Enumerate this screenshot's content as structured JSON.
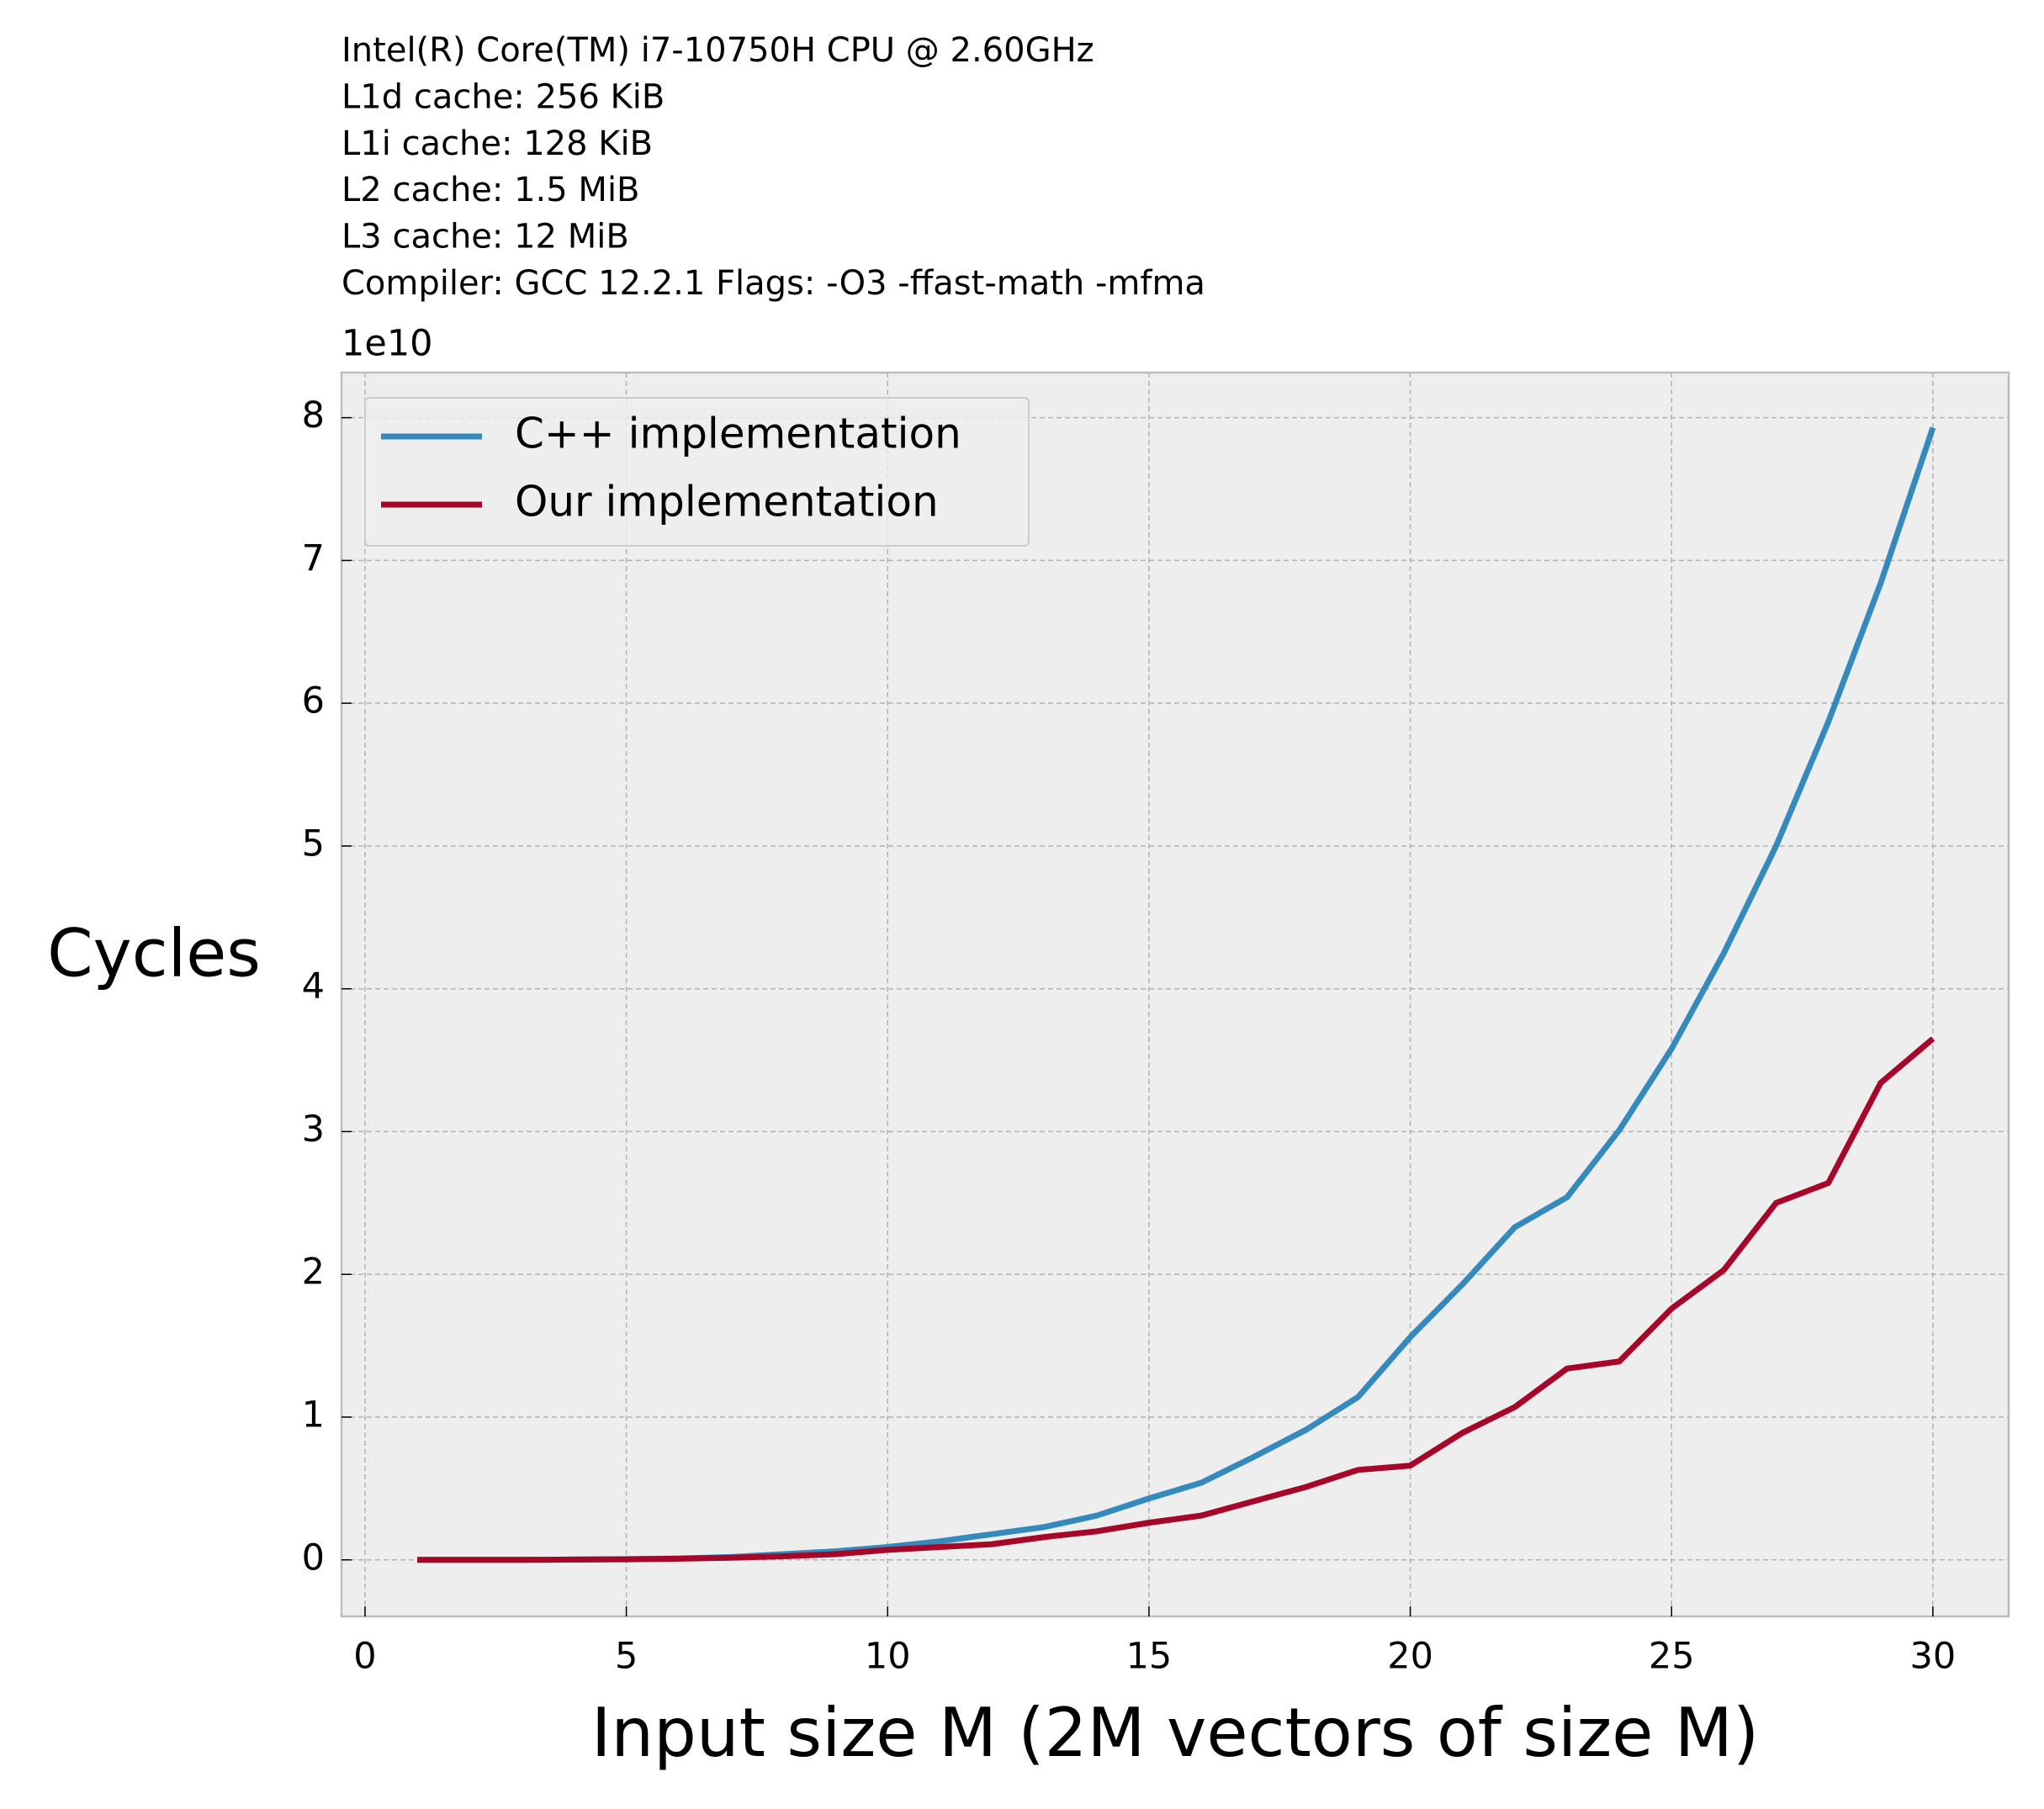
{
  "chart_data": {
    "type": "line",
    "annotations": [
      "Intel(R) Core(TM) i7-10750H CPU @ 2.60GHz",
      "L1d cache: 256 KiB",
      "L1i cache: 128 KiB",
      "L2 cache: 1.5 MiB",
      "L3 cache: 12 MiB",
      "Compiler:  GCC 12.2.1 Flags: -O3 -ffast-math -mfma"
    ],
    "y_offset_label": "1e10",
    "x_label": "Input size M (2M vectors of size M)",
    "y_label": "Cycles",
    "x": [
      1,
      2,
      3,
      4,
      5,
      6,
      7,
      8,
      9,
      10,
      11,
      12,
      13,
      14,
      15,
      16,
      17,
      18,
      19,
      20,
      21,
      22,
      23,
      24,
      25,
      26,
      27,
      28,
      29,
      30
    ],
    "series": [
      {
        "name": "C++ implementation",
        "color": "#348abd",
        "values": [
          0,
          0,
          0,
          0.002,
          0.005,
          0.01,
          0.02,
          0.04,
          0.06,
          0.09,
          0.13,
          0.18,
          0.23,
          0.31,
          0.43,
          0.54,
          0.72,
          0.91,
          1.14,
          1.56,
          1.93,
          2.33,
          2.54,
          3.01,
          3.58,
          4.25,
          5.0,
          5.87,
          6.84,
          7.93
        ]
      },
      {
        "name": "Our implementation",
        "color": "#a60628",
        "values": [
          0,
          0,
          0,
          0.002,
          0.004,
          0.008,
          0.015,
          0.025,
          0.04,
          0.07,
          0.09,
          0.11,
          0.16,
          0.2,
          0.26,
          0.31,
          0.41,
          0.51,
          0.63,
          0.66,
          0.89,
          1.07,
          1.34,
          1.39,
          1.76,
          2.03,
          2.5,
          2.64,
          3.34,
          3.65
        ]
      }
    ],
    "xlim": [
      -0.45,
      31.45
    ],
    "xticks": [
      0,
      5,
      10,
      15,
      20,
      25,
      30
    ],
    "ylim": [
      -0.396,
      8.316
    ],
    "yticks": [
      0,
      1,
      2,
      3,
      4,
      5,
      6,
      7,
      8
    ],
    "grid": true,
    "legend": "upper left"
  }
}
